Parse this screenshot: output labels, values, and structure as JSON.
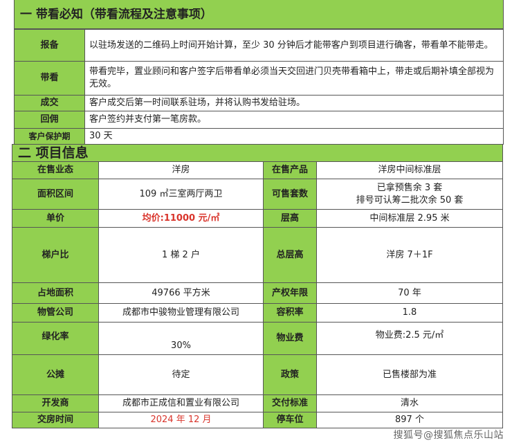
{
  "section1": {
    "title": "一 带看必知（带看流程及注意事项）",
    "rows": [
      {
        "label": "报备",
        "value": "以驻场发送的二维码上时间开始计算，至少 30 分钟后才能带客户到项目进行确客，带看单不能带走。"
      },
      {
        "label": "带看",
        "value": "带看完毕，置业顾问和客户签字后带看单必须当天交回进门贝壳带看箱中上，带走或后期补填全部视为无效。"
      },
      {
        "label": "成交",
        "value": "客户成交后第一时间联系驻场，并将认购书发给驻场。"
      },
      {
        "label": "回佣",
        "value": "客户签约并支付第一笔房款。"
      },
      {
        "label": "客户保护期",
        "value": "30 天"
      }
    ]
  },
  "section2": {
    "title": "二 项目信息",
    "rows": [
      {
        "l1": "在售业态",
        "v1": "洋房",
        "l2": "在售产品",
        "v2": "洋房中间标准层"
      },
      {
        "l1": "面积区间",
        "v1": "109 ㎡三室两厅两卫",
        "l2": "可售套数",
        "v2": "已拿预售余 3 套",
        "v2b": "排号可认筹二批次余 50 套"
      },
      {
        "l1": "单价",
        "v1": "均价:11000 元/㎡",
        "l2": "层高",
        "v2": "中间标准层 2.95 米"
      },
      {
        "l1": "梯户比",
        "v1": "1 梯 2 户",
        "l2": "总层高",
        "v2": "洋房 7＋1F"
      },
      {
        "l1": "占地面积",
        "v1": "49766 平方米",
        "l2": "产权年限",
        "v2": "70 年"
      },
      {
        "l1": "物管公司",
        "v1": "成都市中骏物业管理有限公司",
        "l2": "容积率",
        "v2": "1.8"
      },
      {
        "l1": "绿化率",
        "v1": "30%",
        "l2": "物业费",
        "v2": "物业费:2.5 元/㎡"
      },
      {
        "l1": "公摊",
        "v1": "待定",
        "l2": "政策",
        "v2": "已售楼部为准"
      },
      {
        "l1": "开发商",
        "v1": "成都市正成信和置业有限公司",
        "l2": "交付标准",
        "v2": "清水"
      },
      {
        "l1": "交房时间",
        "v1": "2024 年 12 月",
        "l2": "停车位",
        "v2": "897 个"
      }
    ]
  },
  "watermark": "搜狐号@搜狐焦点乐山站",
  "colors": {
    "header_green": "#92d050",
    "highlight_red": "#d9342b"
  }
}
